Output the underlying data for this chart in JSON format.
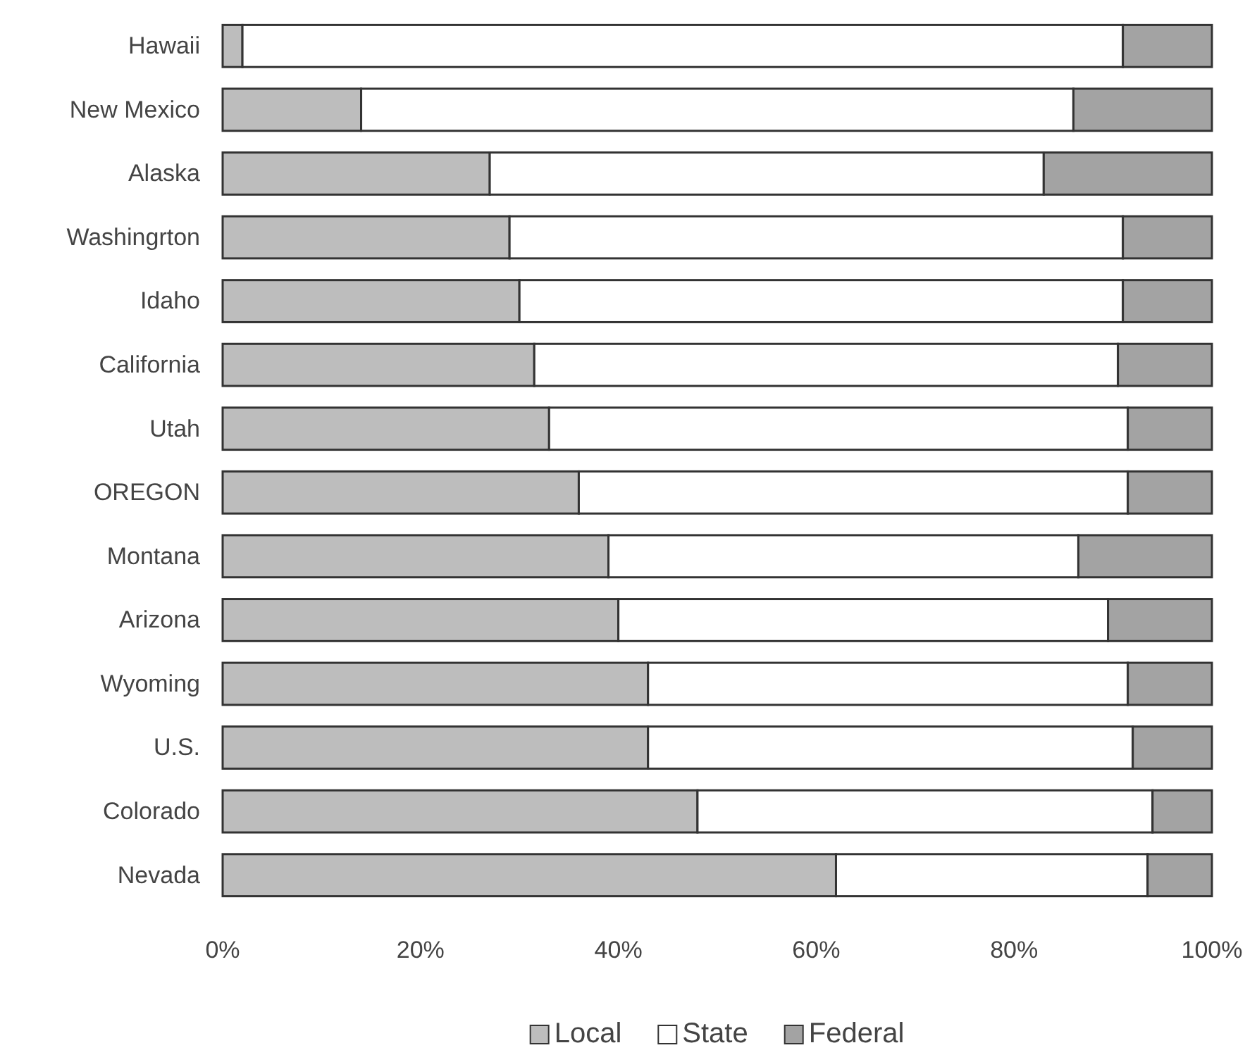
{
  "chart_data": {
    "type": "bar",
    "orientation": "horizontal",
    "stacked": true,
    "categories": [
      "Hawaii",
      "New Mexico",
      "Alaska",
      "Washingrton",
      "Idaho",
      "California",
      "Utah",
      "OREGON",
      "Montana",
      "Arizona",
      "Wyoming",
      "U.S.",
      "Colorado",
      "Nevada"
    ],
    "series": [
      {
        "name": "Local",
        "color": "#bdbdbd",
        "values": [
          2,
          14,
          27,
          29,
          30,
          31.5,
          33,
          36,
          39,
          40,
          43,
          43,
          48,
          62
        ]
      },
      {
        "name": "State",
        "color": "#ffffff",
        "values": [
          89,
          72,
          56,
          62,
          61,
          59,
          58.5,
          55.5,
          47.5,
          49.5,
          48.5,
          49,
          46,
          31.5
        ]
      },
      {
        "name": "Federal",
        "color": "#a3a3a3",
        "values": [
          9,
          14,
          17,
          9,
          9,
          9.5,
          8.5,
          8.5,
          13.5,
          10.5,
          8.5,
          8,
          6,
          6.5
        ]
      }
    ],
    "xlim": [
      0,
      100
    ],
    "xticks": [
      {
        "value": 0,
        "label": "0%"
      },
      {
        "value": 20,
        "label": "20%"
      },
      {
        "value": 40,
        "label": "40%"
      },
      {
        "value": 60,
        "label": "60%"
      },
      {
        "value": 80,
        "label": "80%"
      },
      {
        "value": 100,
        "label": "100%"
      }
    ],
    "grid": false,
    "legend": "bottom"
  }
}
